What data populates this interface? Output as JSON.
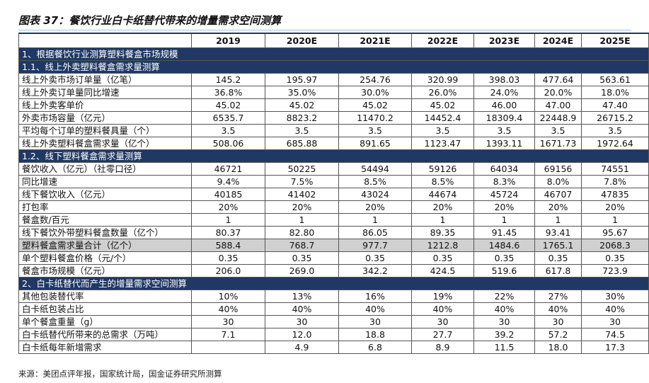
{
  "header": {
    "title": "图表 37：餐饮行业白卡纸替代带来的增量需求空间测算"
  },
  "table": {
    "columns": [
      "2019",
      "2020E",
      "2021E",
      "2022E",
      "2023E",
      "2024E",
      "2025E"
    ],
    "rows": [
      {
        "section": "1、根据餐饮行业测算塑料餐盒市场规模"
      },
      {
        "section": "1.1、线上外卖塑料餐盒需求量测算"
      },
      {
        "label": "线上外卖市场订单量（亿笔）",
        "values": [
          "145.2",
          "195.97",
          "254.76",
          "320.99",
          "398.03",
          "477.64",
          "563.61"
        ]
      },
      {
        "label": "线上外卖订单量同比增速",
        "values": [
          "36.8%",
          "35.0%",
          "30.0%",
          "26.0%",
          "24.0%",
          "20.0%",
          "18.0%"
        ]
      },
      {
        "label": "线上外卖客单价",
        "values": [
          "45.02",
          "45.02",
          "45.02",
          "45.02",
          "46.00",
          "47.00",
          "47.40"
        ]
      },
      {
        "label": "外卖市场容量（亿元）",
        "values": [
          "6535.7",
          "8823.2",
          "11470.2",
          "14452.4",
          "18309.4",
          "22448.9",
          "26715.2"
        ]
      },
      {
        "label": "平均每个订单的塑料餐具量（个）",
        "values": [
          "3.5",
          "3.5",
          "3.5",
          "3.5",
          "3.5",
          "3.5",
          "3.5"
        ]
      },
      {
        "label": "线上外卖塑料餐盒需求量（亿个）",
        "values": [
          "508.06",
          "685.88",
          "891.65",
          "1123.47",
          "1393.11",
          "1671.73",
          "1972.64"
        ]
      },
      {
        "section": "1.2、线下塑料餐盒需求量测算"
      },
      {
        "label": "餐饮收入（亿元）（社零口径）",
        "values": [
          "46721",
          "50225",
          "54494",
          "59126",
          "64034",
          "69156",
          "74551"
        ]
      },
      {
        "label": "同比增速",
        "values": [
          "9.4%",
          "7.5%",
          "8.5%",
          "8.5%",
          "8.3%",
          "8.0%",
          "7.8%"
        ]
      },
      {
        "label": "线下餐饮收入（亿元）",
        "values": [
          "40185",
          "41402",
          "43024",
          "44674",
          "45724",
          "46707",
          "47835"
        ]
      },
      {
        "label": "打包率",
        "values": [
          "20%",
          "20%",
          "20%",
          "20%",
          "20%",
          "20%",
          "20%"
        ]
      },
      {
        "label": "餐盒数/百元",
        "values": [
          "1",
          "1",
          "1",
          "1",
          "1",
          "1",
          "1"
        ]
      },
      {
        "label": "线下餐饮外带塑料餐盒数量（亿个）",
        "values": [
          "80.37",
          "82.80",
          "86.05",
          "89.35",
          "91.45",
          "93.41",
          "95.67"
        ]
      },
      {
        "label": "塑料餐盒需求量合计（亿个）",
        "values": [
          "588.4",
          "768.7",
          "977.7",
          "1212.8",
          "1484.6",
          "1765.1",
          "2068.3"
        ],
        "highlight": true
      },
      {
        "label": "单个塑料餐盒价格（元/个）",
        "values": [
          "0.35",
          "0.35",
          "0.35",
          "0.35",
          "0.35",
          "0.35",
          "0.35"
        ]
      },
      {
        "label": "餐盒市场规模（亿元）",
        "values": [
          "206.0",
          "269.0",
          "342.2",
          "424.5",
          "519.6",
          "617.8",
          "723.9"
        ]
      },
      {
        "section": "2、白卡纸替代而产生的增量需求空间测算"
      },
      {
        "label": "其他包装替代率",
        "values": [
          "10%",
          "13%",
          "16%",
          "19%",
          "22%",
          "27%",
          "30%"
        ]
      },
      {
        "label": "白卡纸包装占比",
        "values": [
          "40%",
          "40%",
          "40%",
          "40%",
          "40%",
          "40%",
          "40%"
        ]
      },
      {
        "label": "单个餐盒重量（g）",
        "values": [
          "30",
          "30",
          "30",
          "30",
          "30",
          "30",
          "30"
        ]
      },
      {
        "label": "白卡纸替代所带来的总需求（万吨）",
        "values": [
          "7.1",
          "12.0",
          "18.8",
          "27.7",
          "39.2",
          "57.2",
          "74.5"
        ]
      },
      {
        "label": "白卡纸每年新增需求",
        "values": [
          null,
          "4.9",
          "6.8",
          "8.9",
          "11.5",
          "18.0",
          "17.3"
        ]
      }
    ]
  },
  "footer": {
    "source": "来源：美团点评年报，国家统计局，国金证券研究所测算"
  }
}
